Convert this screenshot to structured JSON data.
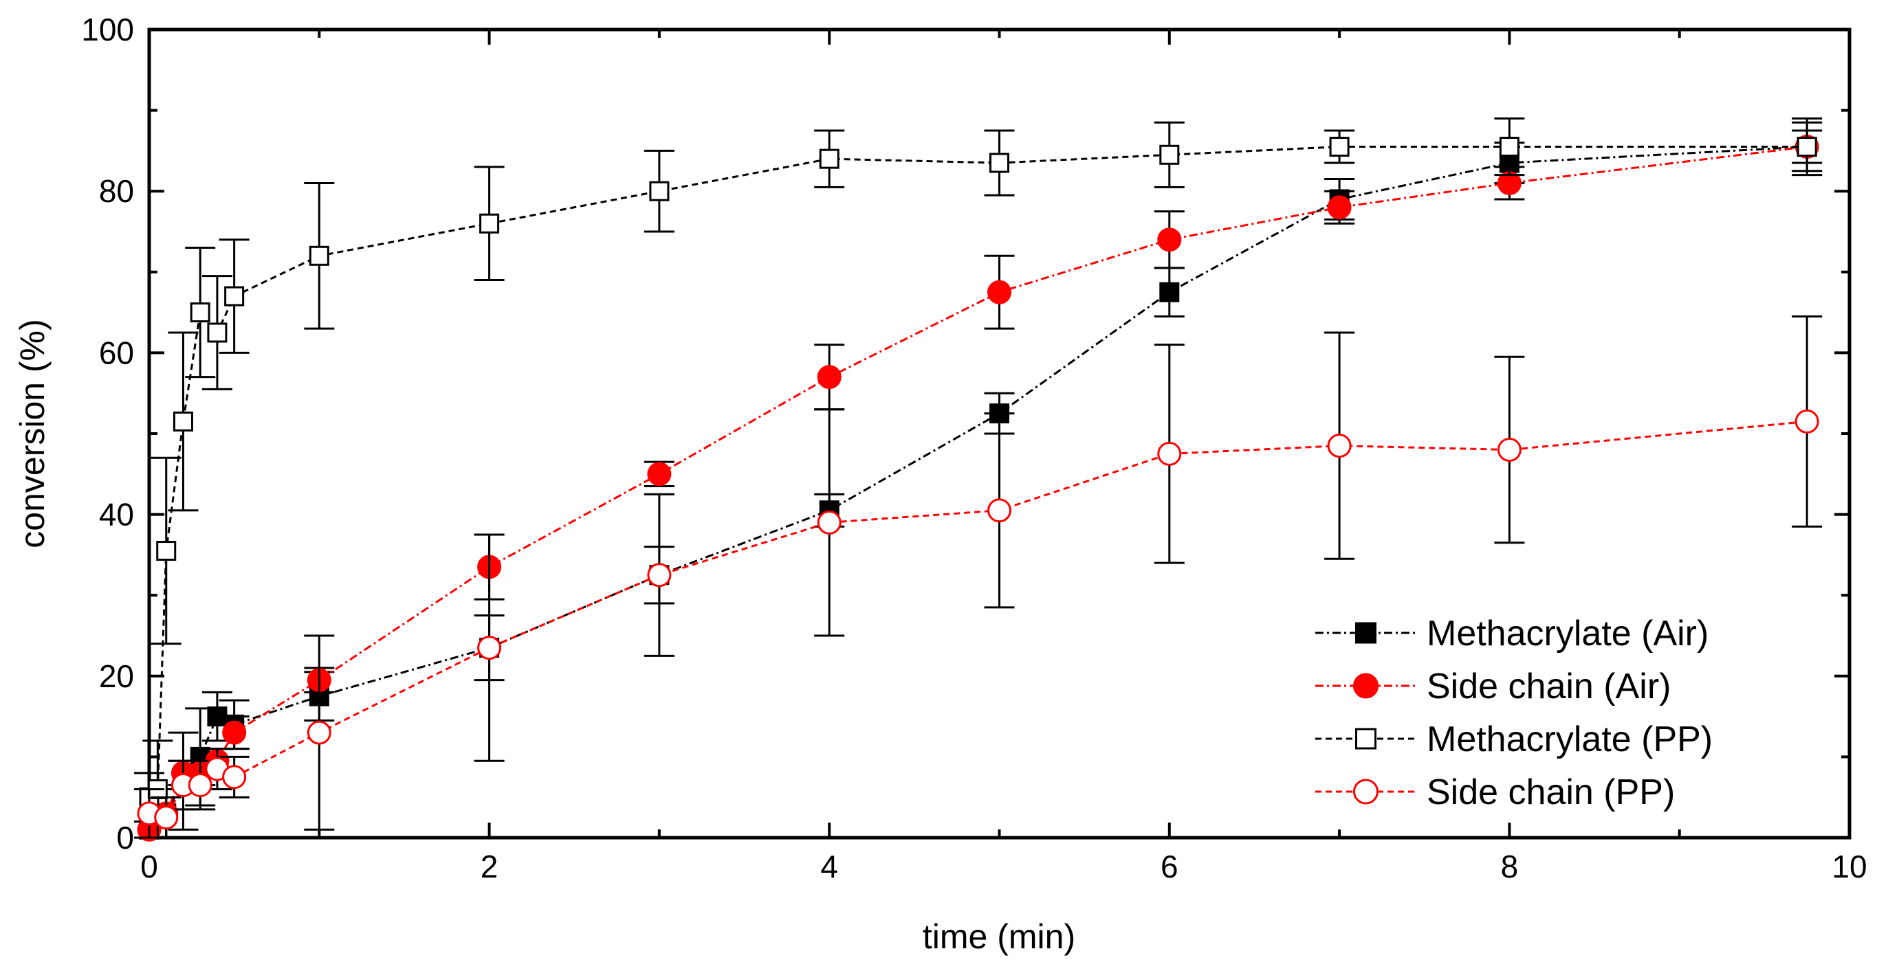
{
  "chart_data": {
    "type": "scatter",
    "title": "",
    "xlabel": "time (min)",
    "ylabel": "conversion (%)",
    "xlim": [
      0,
      10
    ],
    "ylim": [
      0,
      100
    ],
    "xticks": [
      "0",
      "2",
      "4",
      "6",
      "8",
      "10"
    ],
    "yticks": [
      "0",
      "20",
      "40",
      "60",
      "80",
      "100"
    ],
    "grid": false,
    "legend_position": "bottom-right",
    "series": [
      {
        "name": "Methacrylate (Air)",
        "color": "#000000",
        "marker": "square",
        "filled": true,
        "x": [
          0,
          0.1,
          0.2,
          0.3,
          0.4,
          0.5,
          1,
          2,
          3,
          4,
          5,
          6,
          7,
          8,
          9.75
        ],
        "y": [
          1,
          3,
          7,
          10,
          15,
          14,
          17.5,
          23.5,
          32.5,
          40.5,
          52.5,
          67.5,
          79,
          83.5,
          85.5
        ],
        "err": [
          1,
          3,
          6,
          6,
          3,
          3,
          3,
          4,
          3.5,
          2,
          2.5,
          3,
          2.5,
          2.5,
          3
        ]
      },
      {
        "name": "Side chain (Air)",
        "color": "#ff0000",
        "marker": "circle",
        "filled": true,
        "x": [
          0,
          0.1,
          0.2,
          0.3,
          0.4,
          0.5,
          1,
          2,
          3,
          4,
          5,
          6,
          7,
          8,
          9.75
        ],
        "y": [
          1,
          3,
          8,
          8,
          9.5,
          13,
          19.5,
          33.5,
          45,
          57,
          67.5,
          74,
          78,
          81,
          85.5
        ],
        "err": [
          1,
          3,
          1.5,
          1.5,
          1.5,
          2,
          1.5,
          4,
          1.5,
          4,
          4.5,
          3.5,
          2,
          2,
          2
        ]
      },
      {
        "name": "Methacrylate (PP)",
        "color": "#000000",
        "marker": "square",
        "filled": false,
        "x": [
          0,
          0.05,
          0.1,
          0.2,
          0.3,
          0.4,
          0.5,
          1,
          2,
          3,
          4,
          5,
          6,
          7,
          8,
          9.75
        ],
        "y": [
          5,
          6,
          35.5,
          51.5,
          65,
          62.5,
          67,
          72,
          76,
          80,
          84,
          83.5,
          84.5,
          85.5,
          85.5,
          85.5
        ],
        "err": [
          3,
          6,
          11.5,
          11,
          8,
          7,
          7,
          9,
          7,
          5,
          3.5,
          4,
          4,
          2,
          3.5,
          3.5
        ]
      },
      {
        "name": "Side chain (PP)",
        "color": "#ff0000",
        "marker": "circle",
        "filled": false,
        "x": [
          0,
          0.1,
          0.2,
          0.3,
          0.4,
          0.5,
          1,
          2,
          3,
          4,
          5,
          6,
          7,
          8,
          9.75
        ],
        "y": [
          3,
          2.5,
          6.5,
          6.5,
          8.5,
          7.5,
          13,
          23.5,
          32.5,
          39,
          40.5,
          47.5,
          48.5,
          48,
          51.5
        ],
        "err": [
          3,
          2.5,
          3,
          3,
          2.5,
          2.5,
          12,
          14,
          10,
          14,
          12,
          13.5,
          14,
          11.5,
          13
        ]
      }
    ]
  }
}
